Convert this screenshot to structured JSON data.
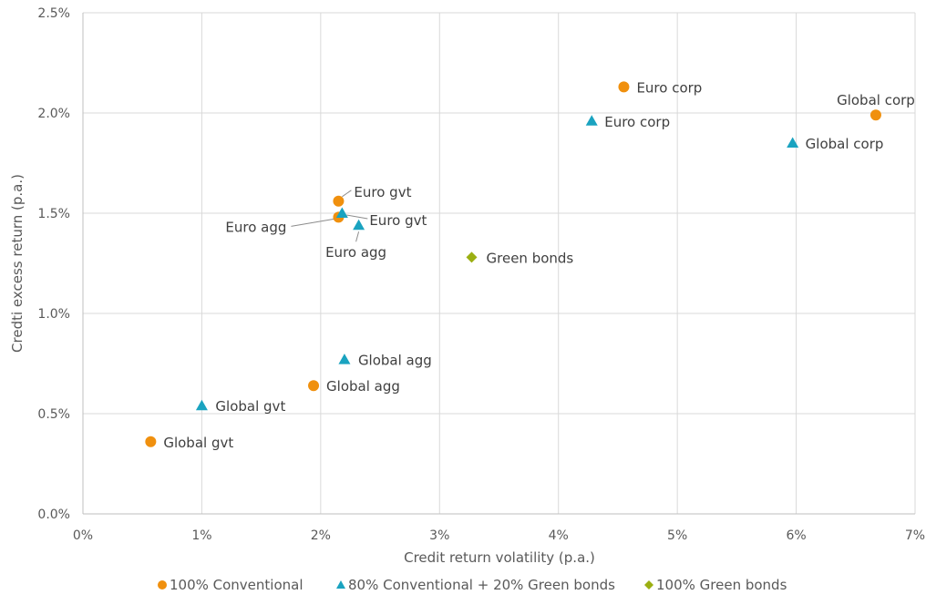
{
  "chart_data": {
    "type": "scatter",
    "xlabel": "Credit return volatility (p.a.)",
    "ylabel": "Credti excess return (p.a.)",
    "xlim": [
      0,
      7
    ],
    "ylim": [
      0,
      2.5
    ],
    "x_ticks": [
      "0%",
      "1%",
      "2%",
      "3%",
      "4%",
      "5%",
      "6%",
      "7%"
    ],
    "y_ticks": [
      "0.0%",
      "0.5%",
      "1.0%",
      "1.5%",
      "2.0%",
      "2.5%"
    ],
    "grid": true,
    "legend_position": "bottom",
    "series": [
      {
        "name": "100% Conventional",
        "marker": "circle",
        "color": "#F0900E",
        "points": [
          {
            "label": "Euro corp",
            "x": 4.55,
            "y": 2.13
          },
          {
            "label": "Global corp",
            "x": 6.67,
            "y": 1.99
          },
          {
            "label": "Euro gvt",
            "x": 2.15,
            "y": 1.56
          },
          {
            "label": "Euro agg",
            "x": 2.15,
            "y": 1.48
          },
          {
            "label": "Global agg",
            "x": 1.94,
            "y": 0.64
          },
          {
            "label": "Global gvt",
            "x": 0.57,
            "y": 0.36
          }
        ]
      },
      {
        "name": "80% Conventional + 20% Green bonds",
        "marker": "triangle",
        "color": "#1AA3C0",
        "points": [
          {
            "label": "Euro corp",
            "x": 4.28,
            "y": 1.96
          },
          {
            "label": "Global corp",
            "x": 5.97,
            "y": 1.85
          },
          {
            "label": "Euro gvt",
            "x": 2.18,
            "y": 1.5
          },
          {
            "label": "Euro agg",
            "x": 2.32,
            "y": 1.44
          },
          {
            "label": "Global agg",
            "x": 2.2,
            "y": 0.77
          },
          {
            "label": "Global gvt",
            "x": 1.0,
            "y": 0.54
          }
        ]
      },
      {
        "name": "100% Green bonds",
        "marker": "diamond",
        "color": "#9BAF12",
        "points": [
          {
            "label": "Green bonds",
            "x": 3.27,
            "y": 1.28
          }
        ]
      }
    ]
  }
}
